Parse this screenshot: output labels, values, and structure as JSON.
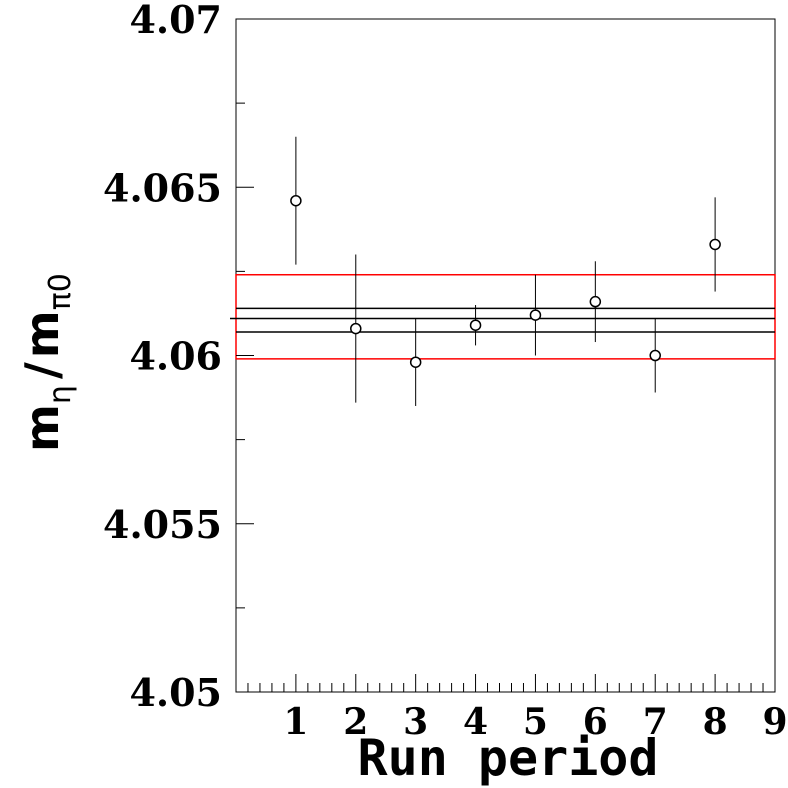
{
  "chart_data": {
    "type": "scatter",
    "xlabel": "Run period",
    "ylabel": {
      "m1": "m",
      "sub1": "η",
      "slash": "/",
      "m2": "m",
      "sub2": "π0"
    },
    "xlim": [
      0,
      9
    ],
    "ylim": [
      4.05,
      4.07
    ],
    "x_ticks": [
      "1",
      "2",
      "3",
      "4",
      "5",
      "6",
      "7",
      "8",
      "9"
    ],
    "y_ticks": [
      "4.05",
      "4.055",
      "4.06",
      "4.065",
      "4.07"
    ],
    "grid": false,
    "points": [
      {
        "x": 1,
        "y": 4.0646,
        "err": 0.0019
      },
      {
        "x": 2,
        "y": 4.0608,
        "err": 0.0022
      },
      {
        "x": 3,
        "y": 4.0598,
        "err": 0.0013
      },
      {
        "x": 4,
        "y": 4.0609,
        "err": 0.0006
      },
      {
        "x": 5,
        "y": 4.0612,
        "err": 0.0012
      },
      {
        "x": 6,
        "y": 4.0616,
        "err": 0.0012
      },
      {
        "x": 7,
        "y": 4.06,
        "err": 0.0011
      },
      {
        "x": 8,
        "y": 4.0633,
        "err": 0.0014
      }
    ],
    "mean": 4.0611,
    "stat_band": [
      4.0607,
      4.0614
    ],
    "syst_band": [
      4.0599,
      4.0624
    ],
    "colors": {
      "markers": "#000000",
      "mean_line": "#000000",
      "syst_band": "#ff0000"
    }
  }
}
